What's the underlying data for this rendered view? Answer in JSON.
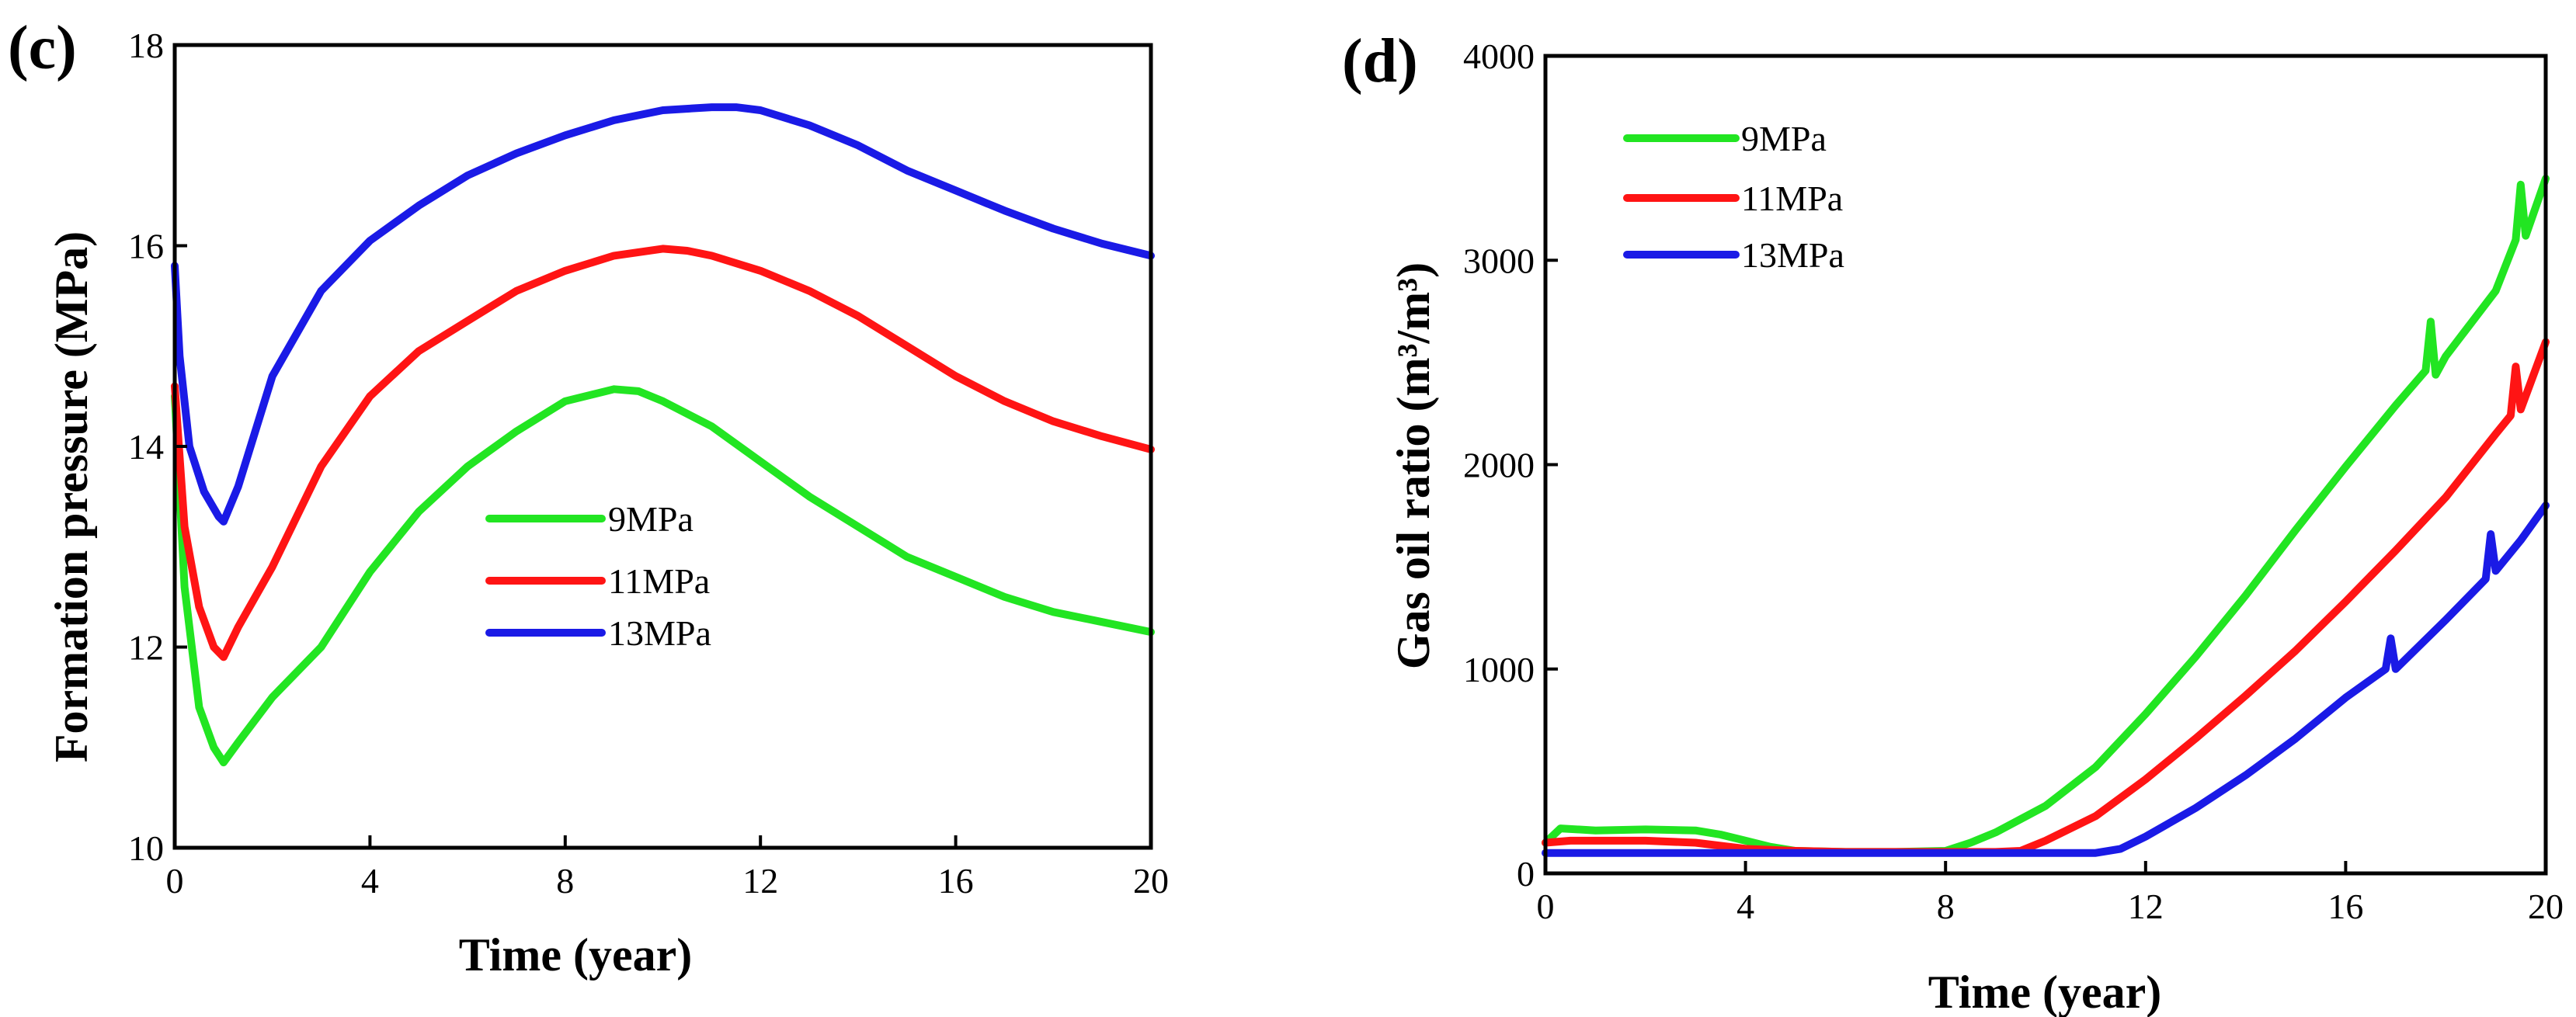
{
  "chart_data": [
    {
      "type": "line",
      "panel_label": "(c)",
      "title": "",
      "xlabel": "Time (year)",
      "ylabel": "Formation pressure (MPa)",
      "xlim": [
        0,
        20
      ],
      "ylim": [
        10,
        18
      ],
      "xticks": [
        0,
        4,
        8,
        12,
        16,
        20
      ],
      "yticks": [
        10,
        12,
        14,
        16,
        18
      ],
      "legend_position": "center",
      "grid": false,
      "series": [
        {
          "name": "9MPa",
          "color": "#22e522",
          "x": [
            0,
            0.2,
            0.5,
            0.8,
            1.0,
            1.3,
            2,
            3,
            4,
            5,
            6,
            7,
            8,
            9,
            9.5,
            10,
            11,
            12,
            13,
            14,
            15,
            16,
            17,
            18,
            19,
            20
          ],
          "y": [
            14.5,
            12.6,
            11.4,
            11.0,
            10.85,
            11.05,
            11.5,
            12.0,
            12.75,
            13.35,
            13.8,
            14.15,
            14.45,
            14.57,
            14.55,
            14.45,
            14.2,
            13.85,
            13.5,
            13.2,
            12.9,
            12.7,
            12.5,
            12.35,
            12.25,
            12.15
          ]
        },
        {
          "name": "11MPa",
          "color": "#ff1414",
          "x": [
            0,
            0.2,
            0.5,
            0.8,
            1.0,
            1.3,
            2,
            3,
            4,
            5,
            6,
            7,
            8,
            9,
            10,
            10.5,
            11,
            12,
            13,
            14,
            15,
            16,
            17,
            18,
            19,
            20
          ],
          "y": [
            14.6,
            13.2,
            12.4,
            12.0,
            11.9,
            12.2,
            12.8,
            13.8,
            14.5,
            14.95,
            15.25,
            15.55,
            15.75,
            15.9,
            15.97,
            15.95,
            15.9,
            15.75,
            15.55,
            15.3,
            15.0,
            14.7,
            14.45,
            14.25,
            14.1,
            13.97
          ]
        },
        {
          "name": "13MPa",
          "color": "#1a1ae6",
          "x": [
            0,
            0.1,
            0.3,
            0.6,
            0.9,
            1.0,
            1.3,
            2,
            3,
            4,
            5,
            6,
            7,
            8,
            9,
            10,
            11,
            11.5,
            12,
            13,
            14,
            15,
            16,
            17,
            18,
            19,
            20
          ],
          "y": [
            15.8,
            14.9,
            14.0,
            13.55,
            13.3,
            13.25,
            13.6,
            14.7,
            15.55,
            16.05,
            16.4,
            16.7,
            16.92,
            17.1,
            17.25,
            17.35,
            17.38,
            17.38,
            17.35,
            17.2,
            17.0,
            16.75,
            16.55,
            16.35,
            16.17,
            16.02,
            15.9
          ]
        }
      ]
    },
    {
      "type": "line",
      "panel_label": "(d)",
      "title": "",
      "xlabel": "Time (year)",
      "ylabel": "Gas oil ratio  (m³/m³)",
      "xlim": [
        0,
        20
      ],
      "ylim": [
        0,
        4000
      ],
      "xticks": [
        0,
        4,
        8,
        12,
        16,
        20
      ],
      "yticks": [
        0,
        1000,
        2000,
        3000,
        4000
      ],
      "legend_position": "top-left",
      "grid": false,
      "series": [
        {
          "name": "9MPa",
          "color": "#22e522",
          "x": [
            0,
            0.3,
            1,
            2,
            3,
            3.5,
            4,
            4.5,
            5,
            6,
            7,
            8,
            8.5,
            9,
            10,
            11,
            12,
            13,
            14,
            15,
            16,
            17,
            17.6,
            17.7,
            17.8,
            18,
            19,
            19.4,
            19.5,
            19.6,
            20
          ],
          "y": [
            150,
            220,
            210,
            215,
            210,
            190,
            160,
            130,
            110,
            105,
            105,
            110,
            150,
            200,
            330,
            520,
            780,
            1060,
            1360,
            1680,
            1990,
            2290,
            2460,
            2700,
            2440,
            2530,
            2850,
            3100,
            3370,
            3120,
            3400
          ]
        },
        {
          "name": "11MPa",
          "color": "#ff1414",
          "x": [
            0,
            0.5,
            1,
            2,
            3,
            4,
            5,
            6,
            7,
            8,
            9,
            9.5,
            10,
            11,
            12,
            13,
            14,
            15,
            16,
            17,
            18,
            19,
            19.3,
            19.4,
            19.5,
            20
          ],
          "y": [
            150,
            160,
            160,
            160,
            150,
            120,
            110,
            105,
            105,
            105,
            105,
            110,
            160,
            280,
            460,
            660,
            870,
            1090,
            1330,
            1580,
            1840,
            2150,
            2240,
            2480,
            2270,
            2600
          ]
        },
        {
          "name": "13MPa",
          "color": "#1a1ae6",
          "x": [
            0,
            1,
            2,
            4,
            6,
            8,
            10,
            11,
            11.5,
            12,
            13,
            14,
            15,
            16,
            16.8,
            16.9,
            17,
            18,
            18.8,
            18.9,
            19,
            19.5,
            20
          ],
          "y": [
            100,
            100,
            100,
            100,
            100,
            100,
            100,
            100,
            120,
            180,
            320,
            480,
            660,
            860,
            1000,
            1150,
            1000,
            1240,
            1440,
            1660,
            1480,
            1630,
            1800
          ]
        }
      ]
    }
  ]
}
